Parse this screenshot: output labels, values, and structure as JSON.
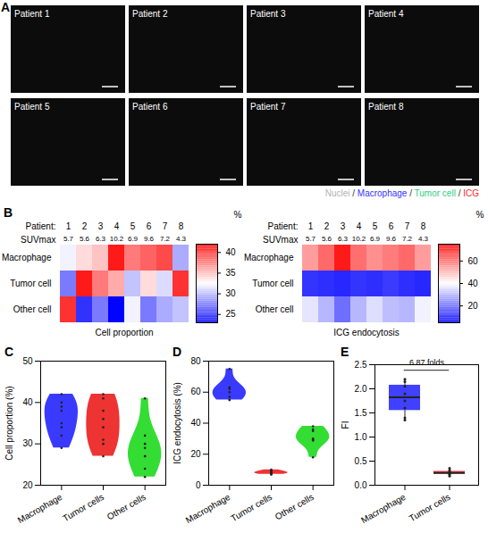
{
  "panel_a": {
    "panel_label": "A",
    "tiles": [
      "Patient 1",
      "Patient 2",
      "Patient 3",
      "Patient 4",
      "Patient 5",
      "Patient 6",
      "Patient 7",
      "Patient 8"
    ],
    "legend_items": [
      {
        "label": "Nuclei",
        "color": "#b5b5b5"
      },
      {
        "label": "Macrophage",
        "color": "#3434ff"
      },
      {
        "label": "Tumor cell",
        "color": "#2ecf7e"
      },
      {
        "label": "ICG",
        "color": "#ff2222"
      }
    ],
    "separator": "/"
  },
  "chart_data": [
    {
      "type": "heatmap",
      "panel_label": "B",
      "title": "Cell proportion",
      "x_label": "Patient:",
      "x": [
        1,
        2,
        3,
        4,
        5,
        6,
        7,
        8
      ],
      "row_label": "SUVmax",
      "row_values": [
        5.7,
        5.6,
        6.3,
        10.2,
        6.9,
        9.6,
        7.2,
        4.3
      ],
      "categories": [
        "Macrophage",
        "Tumor cell",
        "Other cell"
      ],
      "cells": [
        [
          32,
          34,
          35,
          42,
          38,
          39,
          40,
          29
        ],
        [
          27,
          42,
          38,
          36,
          30,
          34,
          31,
          41
        ],
        [
          41,
          24,
          27,
          22,
          32,
          27,
          29,
          30
        ]
      ],
      "colorbar": {
        "label": "%",
        "range": [
          23,
          42
        ],
        "ticks": [
          25,
          30,
          35,
          40
        ]
      }
    },
    {
      "type": "heatmap",
      "title": "ICG endocytosis",
      "x_label": "Patient:",
      "x": [
        1,
        2,
        3,
        4,
        5,
        6,
        7,
        8
      ],
      "row_label": "SUVmax",
      "row_values": [
        5.7,
        5.6,
        6.3,
        10.2,
        6.9,
        9.6,
        7.2,
        4.3
      ],
      "categories": [
        "Macrophage",
        "Tumor cell",
        "Other cell"
      ],
      "cells": [
        [
          55,
          63,
          75,
          62,
          57,
          60,
          63,
          55
        ],
        [
          9,
          8,
          7,
          9,
          8,
          10,
          8,
          7
        ],
        [
          36,
          29,
          18,
          29,
          35,
          30,
          29,
          38
        ]
      ],
      "colorbar": {
        "label": "%",
        "range": [
          5,
          75
        ],
        "ticks": [
          20,
          40,
          60
        ]
      }
    },
    {
      "type": "violin",
      "panel_label": "C",
      "categories": [
        "Macrophage",
        "Tumor cells",
        "Other cells"
      ],
      "values": [
        [
          32,
          34,
          35,
          42,
          38,
          39,
          40,
          29
        ],
        [
          27,
          42,
          38,
          36,
          30,
          34,
          31,
          41
        ],
        [
          41,
          24,
          27,
          22,
          32,
          27,
          29,
          30
        ]
      ],
      "colors": [
        "#3a3aff",
        "#ee3333",
        "#33dd33"
      ],
      "ylabel": "Cell proportion (%)",
      "ylim": [
        20,
        50
      ],
      "yticks": [
        20,
        30,
        40,
        50
      ]
    },
    {
      "type": "violin",
      "panel_label": "D",
      "categories": [
        "Macrophage",
        "Tumor cells",
        "Other cells"
      ],
      "values": [
        [
          55,
          63,
          75,
          62,
          57,
          60,
          63,
          55
        ],
        [
          9,
          8,
          7,
          9,
          8,
          10,
          8,
          7
        ],
        [
          36,
          29,
          18,
          29,
          35,
          30,
          29,
          38
        ]
      ],
      "colors": [
        "#3a3aff",
        "#ee3333",
        "#33dd33"
      ],
      "ylabel": "ICG endocytosis (%)",
      "ylim": [
        0,
        80
      ],
      "yticks": [
        0,
        20,
        40,
        60,
        80
      ]
    },
    {
      "type": "box",
      "panel_label": "E",
      "categories": [
        "Macrophage",
        "Tumor cells"
      ],
      "values": [
        [
          2.2,
          2.15,
          2.05,
          1.9,
          1.75,
          1.6,
          1.4,
          1.35
        ],
        [
          0.35,
          0.31,
          0.28,
          0.26,
          0.25,
          0.24,
          0.22,
          0.19
        ]
      ],
      "colors": [
        "#4040ff",
        "#e8383d"
      ],
      "ylabel": "FI",
      "ylim": [
        0,
        2.5
      ],
      "yticks": [
        {
          "value": 0,
          "label": "0.0"
        },
        0.5,
        {
          "value": 1,
          "label": "1.0"
        },
        1.5,
        {
          "value": 2,
          "label": "2.0"
        },
        2.5
      ],
      "annotation": "6.87 folds"
    }
  ]
}
